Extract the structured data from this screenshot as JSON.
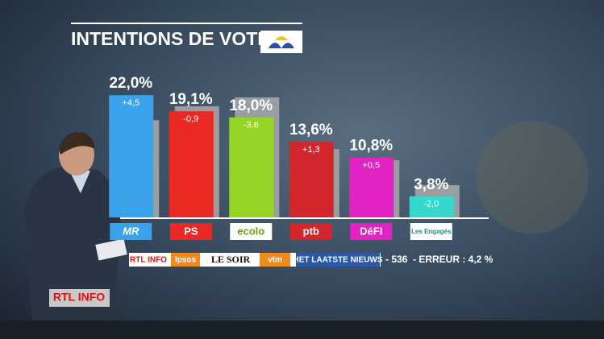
{
  "chart_data": {
    "type": "bar",
    "title": "INTENTIONS DE VOTE",
    "categories": [
      "MR",
      "PS",
      "ecolo",
      "ptb",
      "DéFI",
      "Les Engagés"
    ],
    "values": [
      22.0,
      19.1,
      18.0,
      13.6,
      10.8,
      3.8
    ],
    "value_labels": [
      "22,0%",
      "19,1%",
      "18,0%",
      "13,6%",
      "10,8%",
      "3,8%"
    ],
    "change_labels": [
      "+4,5",
      "-0,9",
      "-3,6",
      "+1,3",
      "+0,5",
      "-2,0"
    ],
    "previous_values": [
      17.5,
      20.0,
      21.6,
      12.3,
      10.3,
      5.8
    ],
    "colors": [
      "#3aa2ea",
      "#ea2a22",
      "#93d424",
      "#d3262c",
      "#e223c4",
      "#35d8ca"
    ],
    "previous_color": "#9a9ea3",
    "ylim": [
      0,
      25
    ],
    "sources": [
      "RTL INFO",
      "Ipsos",
      "LE SOIR",
      "vtm",
      "HET LAATSTE NIEUWS"
    ],
    "sample_note": "- 536",
    "error_note": "- ERREUR : 4,2 %",
    "channel_logo": "RTL INFO"
  }
}
